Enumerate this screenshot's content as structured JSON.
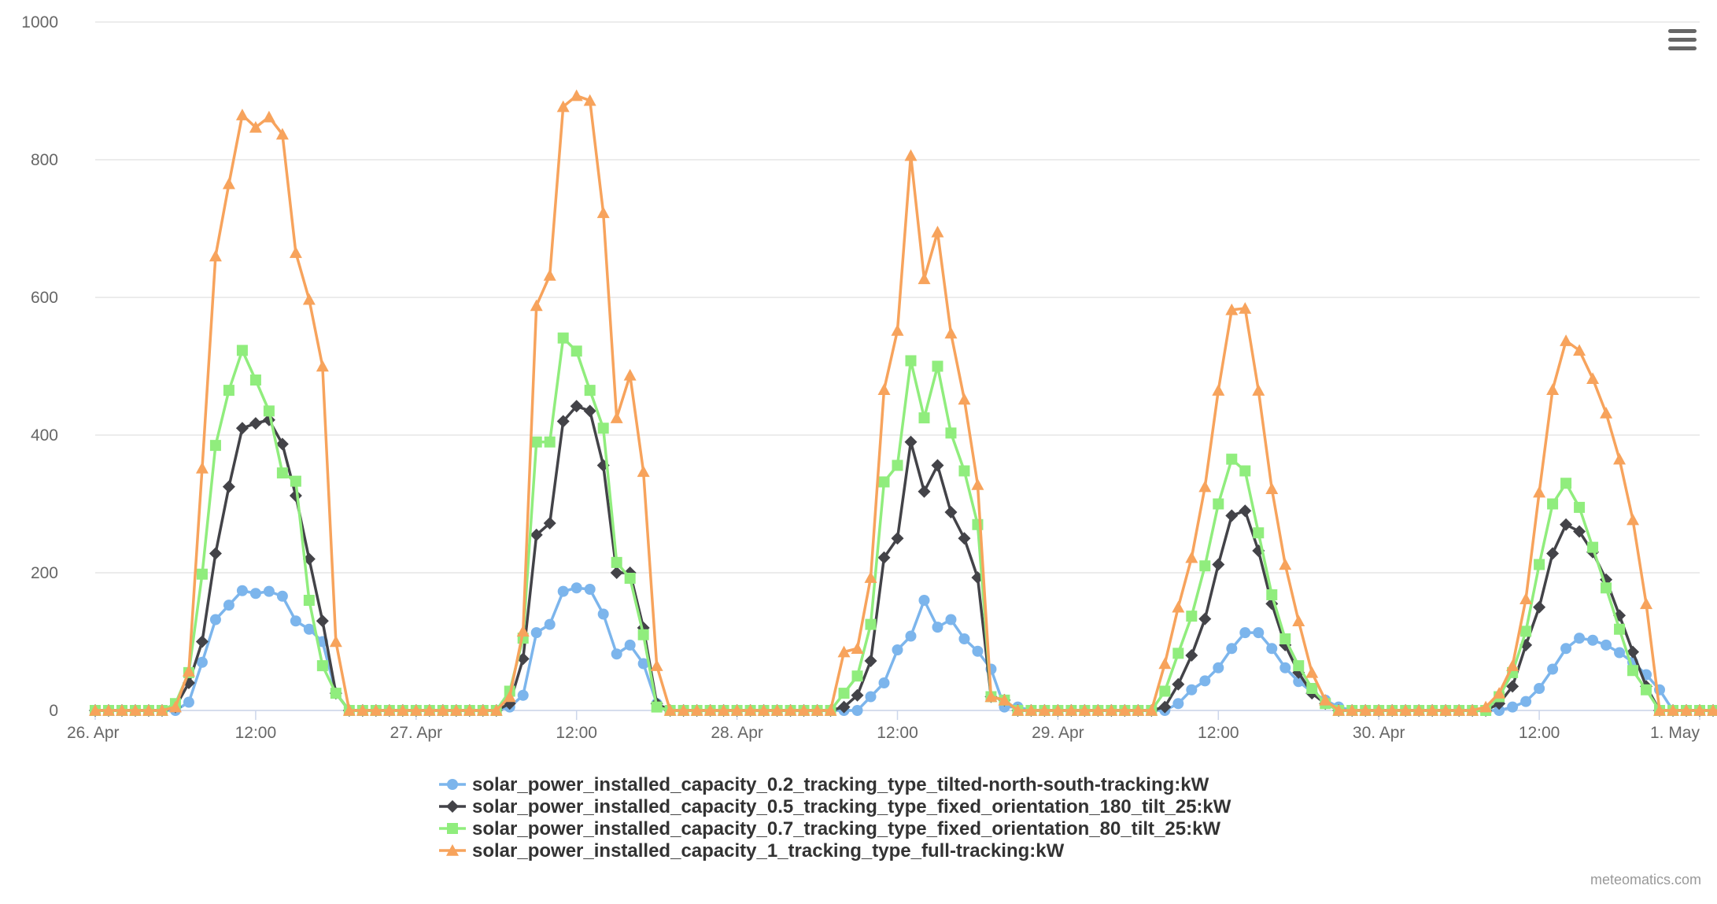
{
  "chart_data": {
    "type": "line",
    "title": "",
    "xlabel": "",
    "ylabel": "",
    "ylim": [
      0,
      1000
    ],
    "yticks": [
      0,
      200,
      400,
      600,
      800,
      1000
    ],
    "xlim_hours": [
      0,
      120
    ],
    "xticks": [
      {
        "hour": 0,
        "label": "26. Apr"
      },
      {
        "hour": 12,
        "label": "12:00"
      },
      {
        "hour": 24,
        "label": "27. Apr"
      },
      {
        "hour": 36,
        "label": "12:00"
      },
      {
        "hour": 48,
        "label": "28. Apr"
      },
      {
        "hour": 60,
        "label": "12:00"
      },
      {
        "hour": 72,
        "label": "29. Apr"
      },
      {
        "hour": 84,
        "label": "12:00"
      },
      {
        "hour": 96,
        "label": "30. Apr"
      },
      {
        "hour": 108,
        "label": "12:00"
      },
      {
        "hour": 120,
        "label": "1. May"
      }
    ],
    "x_start": "26. Apr 00:00",
    "x_step_hours": 1,
    "grid": "horizontal",
    "legend_position": "bottom-center",
    "series": [
      {
        "name": "solar_power_installed_capacity_0.2_tracking_type_tilted-north-south-tracking:kW",
        "color": "#7cb5ec",
        "marker": "circle",
        "values": [
          0,
          0,
          0,
          0,
          0,
          0,
          0,
          12,
          70,
          132,
          153,
          174,
          170,
          173,
          166,
          130,
          118,
          100,
          25,
          0,
          0,
          0,
          0,
          0,
          0,
          0,
          0,
          0,
          0,
          0,
          0,
          5,
          22,
          113,
          125,
          173,
          178,
          176,
          140,
          82,
          95,
          68,
          10,
          0,
          0,
          0,
          0,
          0,
          0,
          0,
          0,
          0,
          0,
          0,
          0,
          0,
          0,
          0,
          20,
          40,
          88,
          108,
          160,
          121,
          132,
          104,
          86,
          60,
          5,
          5,
          0,
          0,
          0,
          0,
          0,
          0,
          0,
          0,
          0,
          0,
          0,
          10,
          30,
          43,
          62,
          90,
          113,
          113,
          90,
          62,
          42,
          27,
          15,
          5,
          0,
          0,
          0,
          0,
          0,
          0,
          0,
          0,
          0,
          0,
          0,
          0,
          5,
          13,
          32,
          60,
          90,
          105,
          102,
          95,
          84,
          70,
          52,
          30,
          0,
          0,
          0,
          0,
          0,
          0
        ]
      },
      {
        "name": "solar_power_installed_capacity_0.5_tracking_type_fixed_orientation_180_tilt_25:kW",
        "color": "#434348",
        "marker": "diamond",
        "values": [
          0,
          0,
          0,
          0,
          0,
          0,
          5,
          40,
          100,
          228,
          325,
          410,
          417,
          422,
          387,
          312,
          220,
          130,
          25,
          0,
          0,
          0,
          0,
          0,
          0,
          0,
          0,
          0,
          0,
          0,
          0,
          10,
          75,
          255,
          272,
          420,
          442,
          435,
          356,
          200,
          200,
          120,
          10,
          0,
          0,
          0,
          0,
          0,
          0,
          0,
          0,
          0,
          0,
          0,
          0,
          0,
          5,
          22,
          72,
          222,
          250,
          390,
          318,
          356,
          288,
          250,
          193,
          20,
          15,
          0,
          0,
          0,
          0,
          0,
          0,
          0,
          0,
          0,
          0,
          0,
          5,
          38,
          80,
          133,
          212,
          283,
          290,
          232,
          155,
          95,
          55,
          25,
          10,
          0,
          0,
          0,
          0,
          0,
          0,
          0,
          0,
          0,
          0,
          0,
          0,
          10,
          35,
          95,
          150,
          228,
          270,
          260,
          230,
          190,
          138,
          85,
          35,
          0,
          0,
          0,
          0,
          0,
          0
        ]
      },
      {
        "name": "solar_power_installed_capacity_0.7_tracking_type_fixed_orientation_80_tilt_25:kW",
        "color": "#90ed7d",
        "marker": "square",
        "values": [
          0,
          0,
          0,
          0,
          0,
          0,
          10,
          55,
          198,
          385,
          465,
          523,
          480,
          435,
          345,
          333,
          160,
          65,
          25,
          0,
          0,
          0,
          0,
          0,
          0,
          0,
          0,
          0,
          0,
          0,
          0,
          28,
          105,
          390,
          390,
          541,
          522,
          465,
          410,
          215,
          192,
          110,
          5,
          0,
          0,
          0,
          0,
          0,
          0,
          0,
          0,
          0,
          0,
          0,
          0,
          0,
          25,
          50,
          125,
          332,
          356,
          508,
          425,
          500,
          403,
          348,
          270,
          20,
          15,
          0,
          0,
          0,
          0,
          0,
          0,
          0,
          0,
          0,
          0,
          0,
          28,
          83,
          137,
          210,
          300,
          365,
          348,
          258,
          168,
          104,
          65,
          32,
          10,
          0,
          0,
          0,
          0,
          0,
          0,
          0,
          0,
          0,
          0,
          0,
          0,
          20,
          55,
          115,
          212,
          300,
          330,
          295,
          237,
          178,
          118,
          58,
          30,
          0,
          0,
          0,
          0,
          0,
          0
        ]
      },
      {
        "name": "solar_power_installed_capacity_1_tracking_type_full-tracking:kW",
        "color": "#f7a35c",
        "marker": "triangle",
        "values": [
          0,
          0,
          0,
          0,
          0,
          0,
          5,
          57,
          352,
          660,
          765,
          865,
          847,
          862,
          837,
          665,
          597,
          500,
          100,
          0,
          0,
          0,
          0,
          0,
          0,
          0,
          0,
          0,
          0,
          0,
          0,
          20,
          115,
          588,
          632,
          877,
          893,
          886,
          723,
          425,
          487,
          347,
          65,
          0,
          0,
          0,
          0,
          0,
          0,
          0,
          0,
          0,
          0,
          0,
          0,
          0,
          85,
          90,
          193,
          466,
          552,
          806,
          627,
          695,
          548,
          452,
          328,
          20,
          15,
          0,
          0,
          0,
          0,
          0,
          0,
          0,
          0,
          0,
          0,
          0,
          68,
          150,
          222,
          325,
          465,
          582,
          584,
          465,
          322,
          212,
          130,
          55,
          15,
          0,
          0,
          0,
          0,
          0,
          0,
          0,
          0,
          0,
          0,
          0,
          5,
          25,
          65,
          162,
          317,
          466,
          537,
          523,
          482,
          432,
          365,
          277,
          155,
          0,
          0,
          0,
          0,
          0,
          0
        ]
      }
    ]
  },
  "menu_icon": "hamburger-menu-icon",
  "credit": "meteomatics.com"
}
